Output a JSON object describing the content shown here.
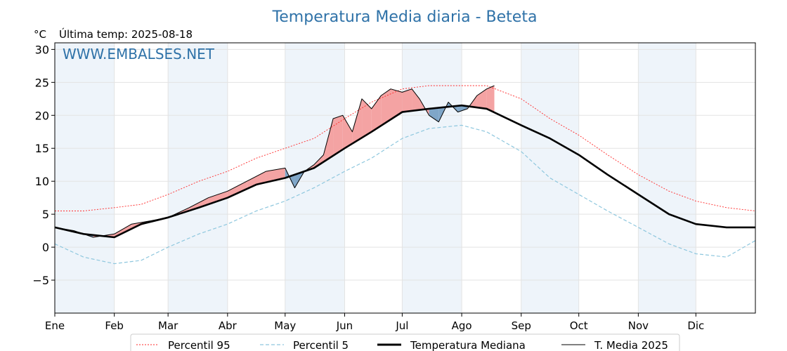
{
  "chart_data": {
    "type": "line",
    "title": "Temperatura Media diaria - Beteta",
    "unit": "°C",
    "last_temp_label": "Última temp: 2025-08-18",
    "watermark": "WWW.EMBALSES.NET",
    "ylim": [
      -10,
      31
    ],
    "yticks": [
      -5,
      0,
      5,
      10,
      15,
      20,
      25,
      30
    ],
    "ytick_labels": [
      "−5",
      "0",
      "5",
      "10",
      "15",
      "20",
      "25",
      "30"
    ],
    "months": [
      "Ene",
      "Feb",
      "Mar",
      "Abr",
      "May",
      "Jun",
      "Jul",
      "Ago",
      "Sep",
      "Oct",
      "Nov",
      "Dic"
    ],
    "month_start_days": [
      0,
      31,
      59,
      90,
      120,
      151,
      181,
      212,
      243,
      273,
      304,
      334
    ],
    "xlim": [
      0,
      365
    ],
    "grid": true,
    "legend_placement": "bottom-center",
    "colors": {
      "p95": "#ff2a2a",
      "p5": "#8ec7de",
      "median": "#000000",
      "media2025": "#000000",
      "above_fill": "#f4a3a3",
      "above_fill_dark": "#e8565a",
      "below_fill": "#7fa6c8",
      "below_fill_dark": "#2f6ea3",
      "month_band": "#eef4fa",
      "title": "#2f72a8"
    },
    "series": [
      {
        "name": "Percentil 95",
        "key": "p95",
        "x": [
          0,
          15,
          31,
          45,
          59,
          75,
          90,
          105,
          120,
          135,
          151,
          165,
          181,
          195,
          212,
          225,
          243,
          258,
          273,
          288,
          304,
          320,
          334,
          350,
          365
        ],
        "y": [
          5.5,
          5.5,
          6.0,
          6.5,
          8.0,
          10.0,
          11.5,
          13.5,
          15.0,
          16.5,
          19.5,
          22.0,
          24.0,
          24.5,
          24.5,
          24.5,
          22.5,
          19.5,
          17.0,
          14.0,
          11.0,
          8.5,
          7.0,
          6.0,
          5.5
        ]
      },
      {
        "name": "Percentil 5",
        "key": "p5",
        "x": [
          0,
          15,
          31,
          45,
          59,
          75,
          90,
          105,
          120,
          135,
          151,
          165,
          181,
          195,
          212,
          225,
          243,
          258,
          273,
          288,
          304,
          320,
          334,
          350,
          365
        ],
        "y": [
          0.5,
          -1.5,
          -2.5,
          -2.0,
          0.0,
          2.0,
          3.5,
          5.5,
          7.0,
          9.0,
          11.5,
          13.5,
          16.5,
          18.0,
          18.5,
          17.5,
          14.5,
          10.5,
          8.0,
          5.5,
          3.0,
          0.5,
          -1.0,
          -1.5,
          1.0
        ]
      },
      {
        "name": "Temperatura Mediana",
        "key": "median",
        "x": [
          0,
          15,
          31,
          45,
          59,
          75,
          90,
          105,
          120,
          135,
          151,
          165,
          181,
          195,
          212,
          225,
          243,
          258,
          273,
          288,
          304,
          320,
          334,
          350,
          365
        ],
        "y": [
          3.0,
          2.0,
          1.5,
          3.5,
          4.5,
          6.0,
          7.5,
          9.5,
          10.5,
          12.0,
          15.0,
          17.5,
          20.5,
          21.0,
          21.5,
          21.0,
          18.5,
          16.5,
          14.0,
          11.0,
          8.0,
          5.0,
          3.5,
          3.0,
          3.0
        ]
      },
      {
        "name": "T. Media 2025",
        "key": "media2025",
        "x": [
          0,
          10,
          20,
          31,
          40,
          50,
          59,
          70,
          80,
          90,
          100,
          110,
          120,
          125,
          130,
          135,
          140,
          145,
          150,
          155,
          160,
          165,
          170,
          175,
          181,
          186,
          190,
          195,
          200,
          205,
          210,
          215,
          220,
          225,
          229
        ],
        "y": [
          3.0,
          2.5,
          1.5,
          2.0,
          3.5,
          4.0,
          4.5,
          6.0,
          7.5,
          8.5,
          10.0,
          11.5,
          12.0,
          9.0,
          11.5,
          12.5,
          14.0,
          19.5,
          20.0,
          17.5,
          22.5,
          21.0,
          23.0,
          24.0,
          23.5,
          24.0,
          22.5,
          20.0,
          19.0,
          22.0,
          20.5,
          21.0,
          23.0,
          24.0,
          24.5
        ]
      }
    ]
  },
  "legend": {
    "p95": "Percentil 95",
    "p5": "Percentil 5",
    "median": "Temperatura Mediana",
    "media2025": "T. Media 2025"
  }
}
